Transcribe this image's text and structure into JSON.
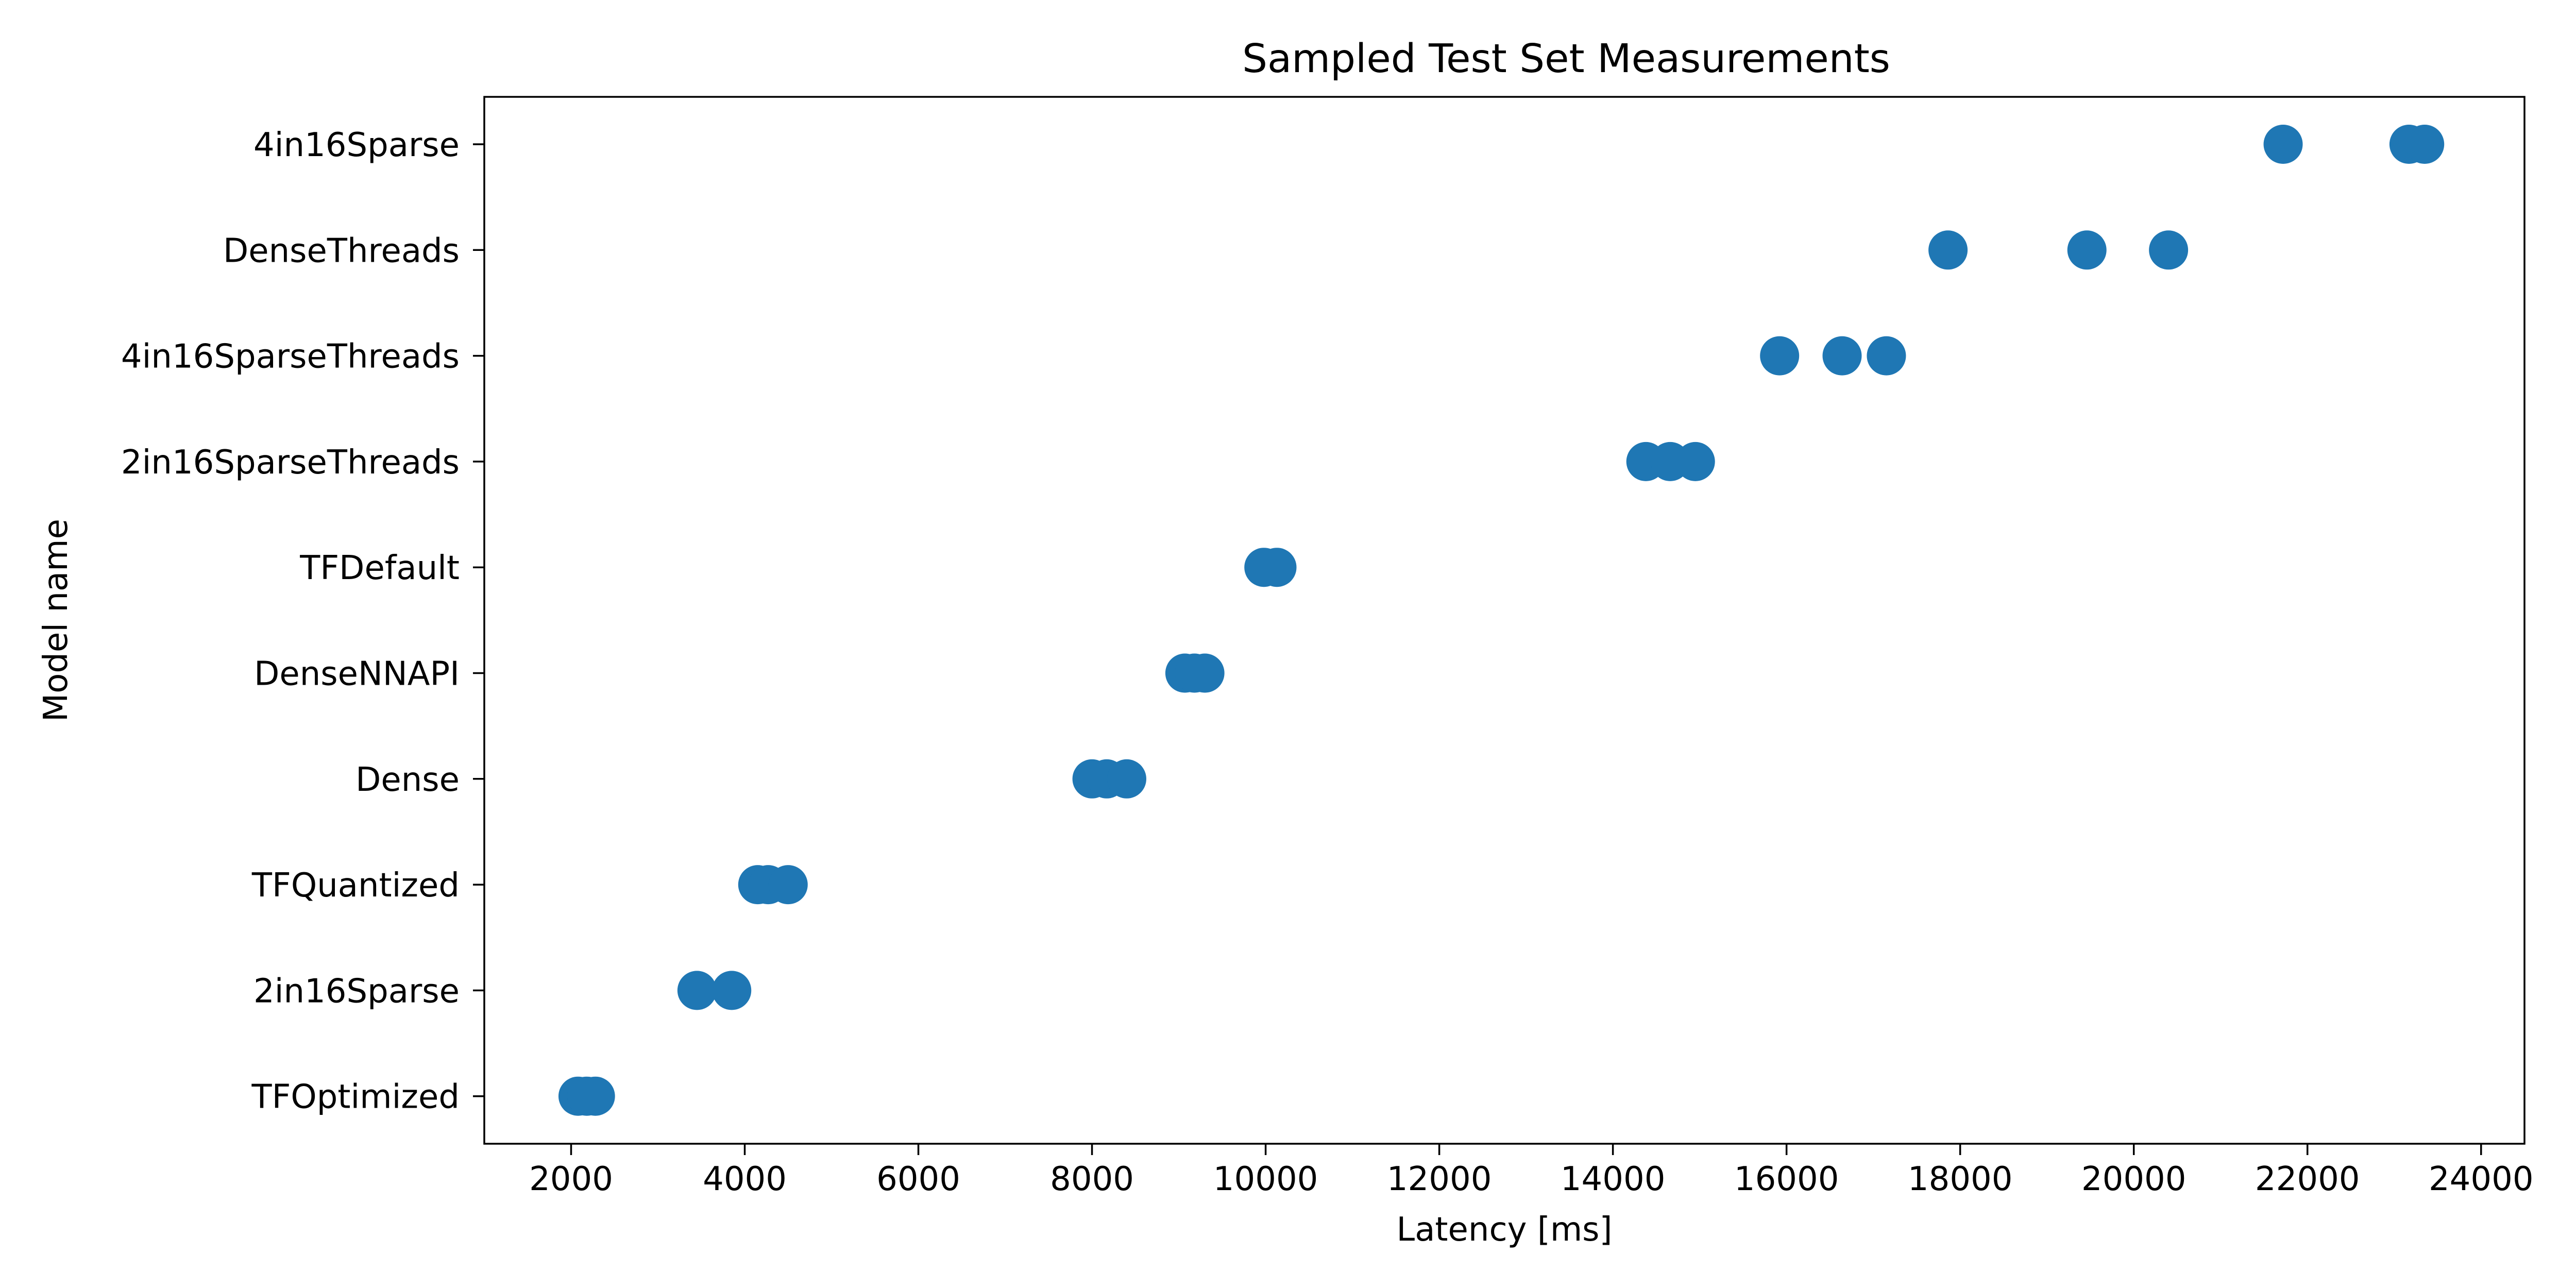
{
  "chart_data": {
    "type": "scatter",
    "title": "Sampled Test Set Measurements",
    "xlabel": "Latency [ms]",
    "ylabel": "Model name",
    "xlim": [
      1000,
      24500
    ],
    "xticks": [
      2000,
      4000,
      6000,
      8000,
      10000,
      12000,
      14000,
      16000,
      18000,
      20000,
      22000,
      24000
    ],
    "categories": [
      "TFOptimized",
      "2in16Sparse",
      "TFQuantized",
      "Dense",
      "DenseNNAPI",
      "TFDefault",
      "2in16SparseThreads",
      "4in16SparseThreads",
      "DenseThreads",
      "4in16Sparse"
    ],
    "series": [
      {
        "color": "#1f77b4",
        "points": [
          {
            "category": "TFOptimized",
            "x": 2080
          },
          {
            "category": "TFOptimized",
            "x": 2180
          },
          {
            "category": "TFOptimized",
            "x": 2280
          },
          {
            "category": "2in16Sparse",
            "x": 3450
          },
          {
            "category": "2in16Sparse",
            "x": 3850
          },
          {
            "category": "TFQuantized",
            "x": 4150
          },
          {
            "category": "TFQuantized",
            "x": 4270
          },
          {
            "category": "TFQuantized",
            "x": 4500
          },
          {
            "category": "Dense",
            "x": 8000
          },
          {
            "category": "Dense",
            "x": 8170
          },
          {
            "category": "Dense",
            "x": 8400
          },
          {
            "category": "DenseNNAPI",
            "x": 9070
          },
          {
            "category": "DenseNNAPI",
            "x": 9180
          },
          {
            "category": "DenseNNAPI",
            "x": 9300
          },
          {
            "category": "TFDefault",
            "x": 9980
          },
          {
            "category": "TFDefault",
            "x": 10130
          },
          {
            "category": "2in16SparseThreads",
            "x": 14380
          },
          {
            "category": "2in16SparseThreads",
            "x": 14660
          },
          {
            "category": "2in16SparseThreads",
            "x": 14950
          },
          {
            "category": "4in16SparseThreads",
            "x": 15920
          },
          {
            "category": "4in16SparseThreads",
            "x": 16640
          },
          {
            "category": "4in16SparseThreads",
            "x": 17150
          },
          {
            "category": "DenseThreads",
            "x": 17860
          },
          {
            "category": "DenseThreads",
            "x": 19460
          },
          {
            "category": "DenseThreads",
            "x": 20400
          },
          {
            "category": "4in16Sparse",
            "x": 21720
          },
          {
            "category": "4in16Sparse",
            "x": 23170
          },
          {
            "category": "4in16Sparse",
            "x": 23350
          }
        ]
      }
    ],
    "grid": false,
    "legend": "none"
  }
}
